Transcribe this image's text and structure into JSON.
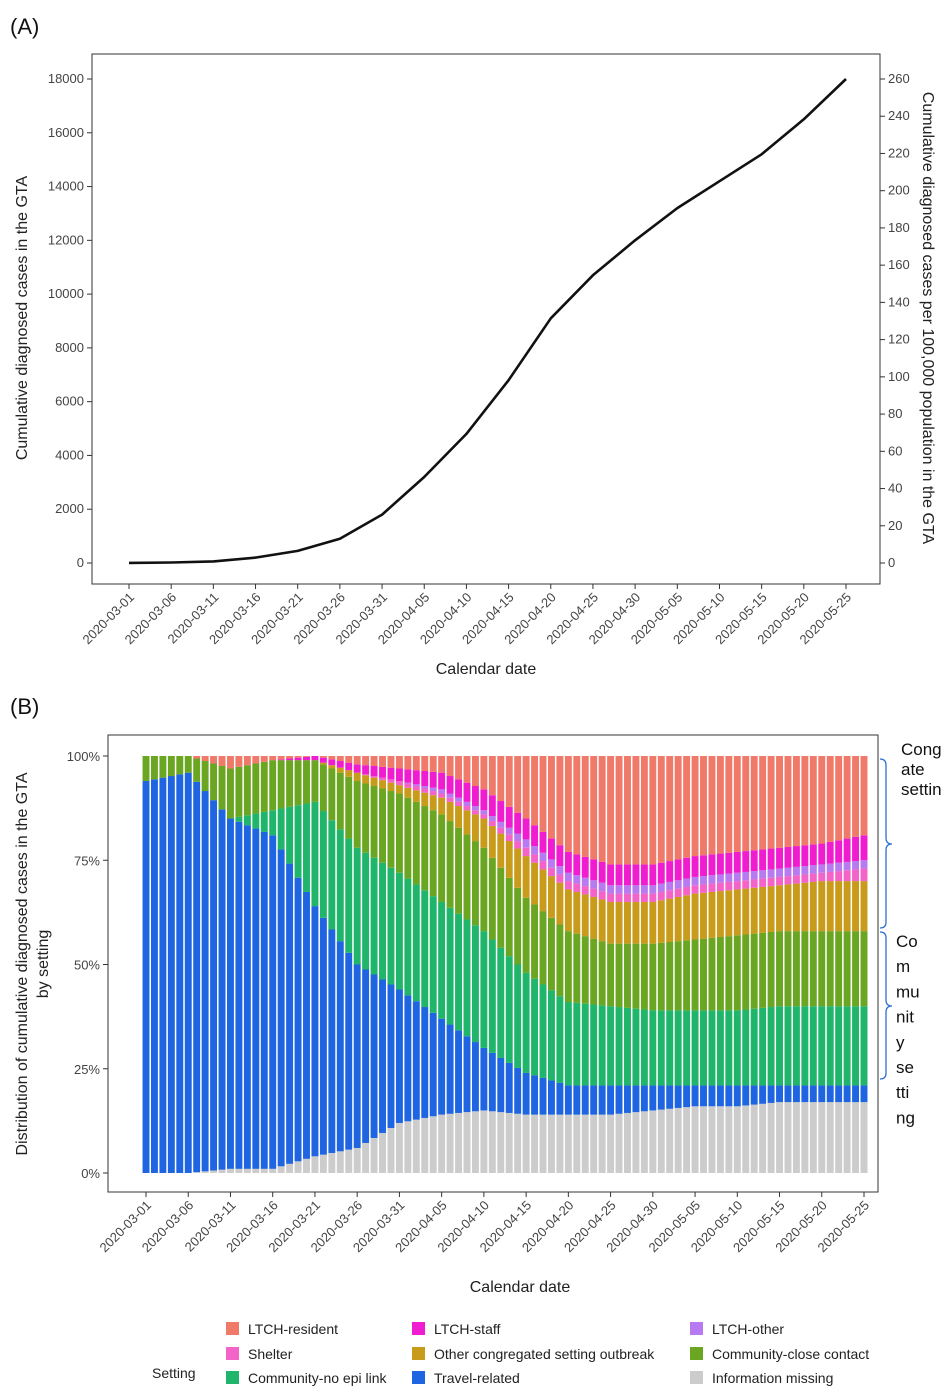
{
  "panels": {
    "a": "(A)",
    "b": "(B)"
  },
  "chart_data": [
    {
      "type": "line",
      "panel": "(A)",
      "xlabel": "Calendar date",
      "ylabel": "Cumulative diagnosed cases in the GTA",
      "ylabel_right": "Cumulative diagnosed cases per 100,000 population in the GTA",
      "ylim": [
        0,
        18000
      ],
      "ylim_right": [
        0,
        260
      ],
      "yticks": [
        0,
        2000,
        4000,
        6000,
        8000,
        10000,
        12000,
        14000,
        16000,
        18000
      ],
      "yticks_right": [
        0,
        20,
        40,
        60,
        80,
        100,
        120,
        140,
        160,
        180,
        200,
        220,
        240,
        260
      ],
      "xticks": [
        "2020-03-01",
        "2020-03-06",
        "2020-03-11",
        "2020-03-16",
        "2020-03-21",
        "2020-03-26",
        "2020-03-31",
        "2020-04-05",
        "2020-04-10",
        "2020-04-15",
        "2020-04-20",
        "2020-04-25",
        "2020-04-30",
        "2020-05-05",
        "2020-05-10",
        "2020-05-15",
        "2020-05-20",
        "2020-05-25"
      ],
      "grid": false,
      "series": [
        {
          "color": "#111111",
          "x": [
            "2020-03-01",
            "2020-03-06",
            "2020-03-11",
            "2020-03-16",
            "2020-03-21",
            "2020-03-26",
            "2020-03-31",
            "2020-04-05",
            "2020-04-10",
            "2020-04-15",
            "2020-04-20",
            "2020-04-25",
            "2020-04-30",
            "2020-05-05",
            "2020-05-10",
            "2020-05-15",
            "2020-05-20",
            "2020-05-25"
          ],
          "values": [
            5,
            20,
            60,
            200,
            450,
            900,
            1800,
            3200,
            4800,
            6800,
            9100,
            10700,
            12000,
            13200,
            14200,
            15200,
            16500,
            18000
          ]
        }
      ]
    },
    {
      "type": "bar",
      "stacked": true,
      "percent": true,
      "panel": "(B)",
      "xlabel": "Calendar date",
      "ylabel": "Distribution of cumulative diagnosed cases in the GTA by setting",
      "ylabel_lines": [
        "Distribution of cumulative diagnosed cases in the GTA",
        "by setting"
      ],
      "yticks": [
        "0%",
        "25%",
        "50%",
        "75%",
        "100%"
      ],
      "ylim": [
        0,
        100
      ],
      "xticks": [
        "2020-03-01",
        "2020-03-06",
        "2020-03-11",
        "2020-03-16",
        "2020-03-21",
        "2020-03-26",
        "2020-03-31",
        "2020-04-05",
        "2020-04-10",
        "2020-04-15",
        "2020-04-20",
        "2020-04-25",
        "2020-04-30",
        "2020-05-05",
        "2020-05-10",
        "2020-05-15",
        "2020-05-20",
        "2020-05-25"
      ],
      "legend_title": "Setting",
      "legend_position": "bottom",
      "annotation_top": [
        "Cong",
        "ate",
        "settin"
      ],
      "annotation_bottom": [
        "Co",
        "m",
        "mu",
        "nit",
        "y",
        "se",
        "tti",
        "ng"
      ],
      "categories": [
        "2020-03-01",
        "2020-03-06",
        "2020-03-11",
        "2020-03-16",
        "2020-03-21",
        "2020-03-26",
        "2020-03-31",
        "2020-04-05",
        "2020-04-10",
        "2020-04-15",
        "2020-04-20",
        "2020-04-25",
        "2020-04-30",
        "2020-05-05",
        "2020-05-10",
        "2020-05-15",
        "2020-05-20",
        "2020-05-25"
      ],
      "series": [
        {
          "name": "Information missing",
          "color": "#cccccc",
          "values": [
            0,
            0,
            1,
            1,
            4,
            6,
            12,
            14,
            15,
            14,
            14,
            14,
            15,
            16,
            16,
            17,
            17,
            17
          ]
        },
        {
          "name": "Travel-related",
          "color": "#1f64e0",
          "values": [
            94,
            96,
            84,
            80,
            60,
            44,
            32,
            23,
            15,
            10,
            7,
            7,
            6,
            5,
            5,
            4,
            4,
            4
          ]
        },
        {
          "name": "Community-no epi link",
          "color": "#1fb56b",
          "values": [
            0,
            0,
            0,
            6,
            25,
            28,
            28,
            28,
            28,
            24,
            20,
            19,
            18,
            18,
            18,
            19,
            19,
            19
          ]
        },
        {
          "name": "Community-close contact",
          "color": "#6aa621",
          "values": [
            6,
            4,
            12,
            12,
            10,
            16,
            19,
            21,
            20,
            18,
            17,
            15,
            16,
            17,
            18,
            18,
            18,
            18
          ]
        },
        {
          "name": "Other congregated setting outbreak",
          "color": "#c99b1a",
          "values": [
            0,
            0,
            0,
            0,
            0,
            2,
            2,
            4,
            7,
            10,
            10,
            10,
            10,
            11,
            11,
            11,
            12,
            12
          ]
        },
        {
          "name": "Shelter",
          "color": "#f463c7",
          "values": [
            0,
            0,
            0,
            0,
            0,
            0,
            1,
            1,
            1,
            2,
            2,
            2,
            2,
            2,
            2,
            2,
            2,
            3
          ]
        },
        {
          "name": "LTCH-other",
          "color": "#b77af0",
          "values": [
            0,
            0,
            0,
            0,
            0,
            0,
            0,
            1,
            1,
            2,
            2,
            2,
            2,
            2,
            2,
            2,
            2,
            2
          ]
        },
        {
          "name": "LTCH-staff",
          "color": "#f01ccf",
          "values": [
            0,
            0,
            0,
            0,
            1,
            2,
            3,
            4,
            5,
            5,
            5,
            5,
            5,
            5,
            5,
            5,
            5,
            6
          ]
        },
        {
          "name": "LTCH-resident",
          "color": "#f07a6a",
          "values": [
            0,
            0,
            3,
            1,
            0,
            2,
            3,
            4,
            8,
            15,
            23,
            26,
            26,
            24,
            23,
            22,
            21,
            19
          ]
        }
      ]
    }
  ]
}
